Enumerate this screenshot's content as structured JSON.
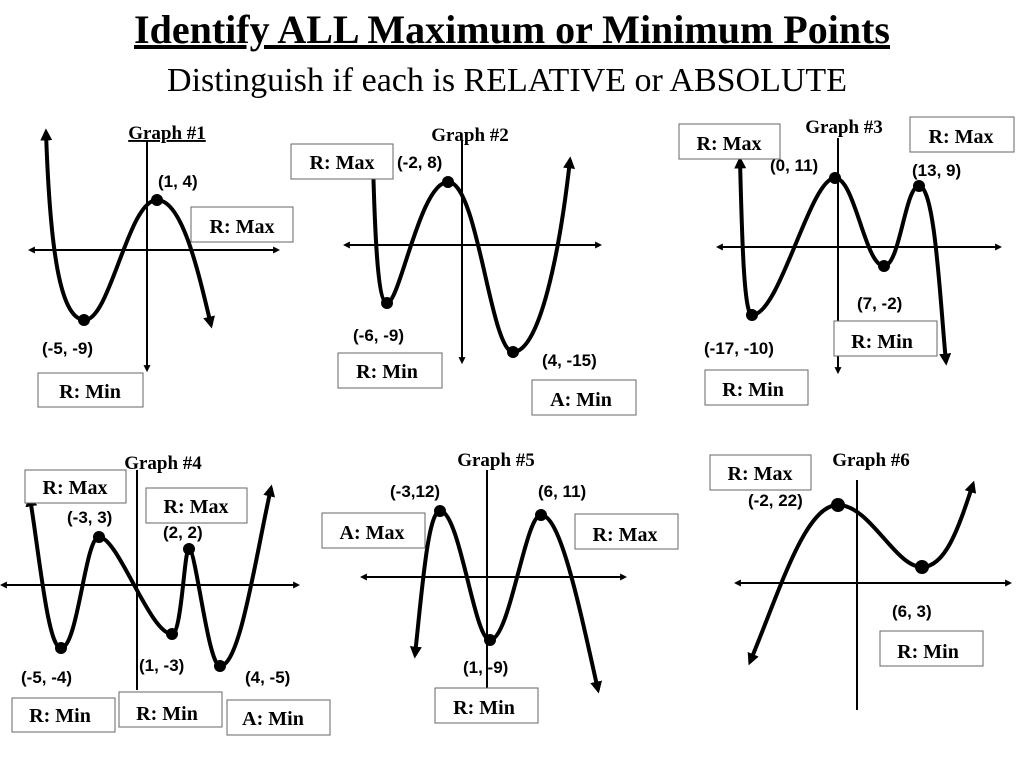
{
  "title": "Identify ALL Maximum or Minimum Points",
  "subtitle": "Distinguish if each is RELATIVE or ABSOLUTE",
  "graphs": [
    {
      "title": "Graph #1",
      "points": [
        {
          "coord": "(1, 4)",
          "label": "R: Max"
        },
        {
          "coord": "(-5, -9)",
          "label": "R: Min"
        }
      ]
    },
    {
      "title": "Graph #2",
      "points": [
        {
          "coord": "(-2, 8)",
          "label": "R: Max"
        },
        {
          "coord": "(-6, -9)",
          "label": "R: Min"
        },
        {
          "coord": "(4, -15)",
          "label": "A: Min"
        }
      ]
    },
    {
      "title": "Graph #3",
      "points": [
        {
          "coord": "(0, 11)",
          "label": "R: Max"
        },
        {
          "coord": "(13, 9)",
          "label": "R: Max"
        },
        {
          "coord": "(7, -2)",
          "label": "R: Min"
        },
        {
          "coord": "(-17, -10)",
          "label": "R: Min"
        }
      ]
    },
    {
      "title": "Graph #4",
      "points": [
        {
          "coord": "(-3, 3)",
          "label": "R: Max"
        },
        {
          "coord": "(2, 2)",
          "label": "R: Max"
        },
        {
          "coord": "(-5, -4)",
          "label": "R: Min"
        },
        {
          "coord": "(1, -3)",
          "label": "R: Min"
        },
        {
          "coord": "(4, -5)",
          "label": "A: Min"
        }
      ]
    },
    {
      "title": "Graph #5",
      "points": [
        {
          "coord": "(-3,12)",
          "label": "A: Max"
        },
        {
          "coord": "(6, 11)",
          "label": "R: Max"
        },
        {
          "coord": "(1, -9)",
          "label": "R: Min"
        }
      ]
    },
    {
      "title": "Graph #6",
      "points": [
        {
          "coord": "(-2, 22)",
          "label": "R: Max"
        },
        {
          "coord": "(6, 3)",
          "label": "R: Min"
        }
      ]
    }
  ]
}
